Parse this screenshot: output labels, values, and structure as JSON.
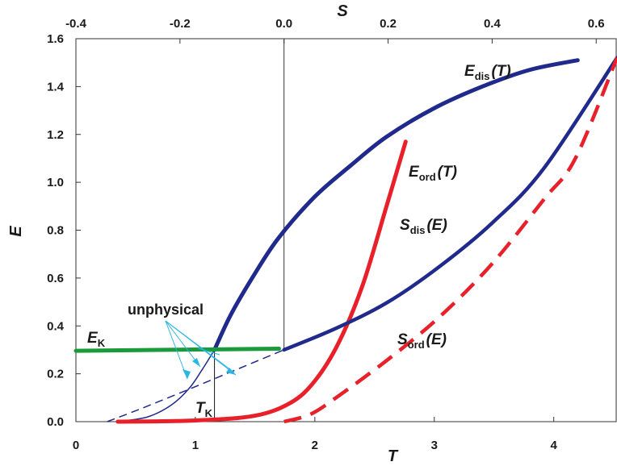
{
  "chart_data": {
    "type": "line",
    "xlabel": "T",
    "ylabel": "E",
    "x2label": "S",
    "xlim": [
      0,
      4.5
    ],
    "ylim": [
      0,
      1.6
    ],
    "x2lim": [
      -0.4,
      0.64
    ],
    "xticks": [
      "0",
      "1",
      "2",
      "3",
      "4"
    ],
    "yticks": [
      "0.0",
      "0.2",
      "0.4",
      "0.6",
      "0.8",
      "1.0",
      "1.2",
      "1.4",
      "1.6"
    ],
    "x2ticks": [
      "-0.4",
      "-0.2",
      "0.0",
      "0.2",
      "0.4",
      "0.6"
    ],
    "grid": false,
    "colors": {
      "dis": "#1f2a8c",
      "ord": "#e8202a",
      "ek": "#1a9a3a",
      "unphysical": "#29b6e0",
      "axis": "#333333"
    },
    "series": [
      {
        "id": "E_dis_T",
        "axis": "T",
        "x": [
          1.16,
          1.3,
          1.5,
          1.7,
          2.0,
          2.3,
          2.6,
          3.0,
          3.4,
          3.8,
          4.2
        ],
        "y": [
          0.3,
          0.45,
          0.62,
          0.77,
          0.94,
          1.07,
          1.19,
          1.31,
          1.4,
          1.47,
          1.51
        ]
      },
      {
        "id": "E_dis_T_unphysical",
        "axis": "T",
        "x": [
          0.35,
          0.6,
          0.8,
          0.95,
          1.06,
          1.16
        ],
        "y": [
          0.0,
          0.02,
          0.07,
          0.14,
          0.22,
          0.3
        ]
      },
      {
        "id": "E_ord_T",
        "axis": "T",
        "x": [
          0.35,
          1.0,
          1.5,
          1.8,
          2.0,
          2.2,
          2.4,
          2.6,
          2.76
        ],
        "y": [
          0.0,
          0.005,
          0.025,
          0.08,
          0.17,
          0.33,
          0.57,
          0.9,
          1.17
        ]
      },
      {
        "id": "S_dis_E",
        "axis": "S",
        "x": [
          0.0,
          0.1,
          0.2,
          0.3,
          0.4,
          0.5,
          0.64
        ],
        "y": [
          0.3,
          0.39,
          0.5,
          0.65,
          0.83,
          1.06,
          1.52
        ]
      },
      {
        "id": "S_dis_E_unphysical",
        "axis": "S",
        "x": [
          -0.34,
          -0.28,
          -0.2,
          -0.1,
          0.0
        ],
        "y": [
          0.0,
          0.05,
          0.12,
          0.21,
          0.3
        ]
      },
      {
        "id": "S_ord_E",
        "axis": "S",
        "x": [
          0.0,
          0.05,
          0.1,
          0.2,
          0.3,
          0.4,
          0.5,
          0.56,
          0.64
        ],
        "y": [
          0.0,
          0.03,
          0.1,
          0.26,
          0.44,
          0.66,
          0.93,
          1.1,
          1.52
        ]
      },
      {
        "id": "E_K",
        "axis": "T",
        "x": [
          0.0,
          1.7
        ],
        "y": [
          0.296,
          0.305
        ]
      }
    ],
    "markers": {
      "T_K": 1.16,
      "E_K": 0.3,
      "S_zero": 0.0
    },
    "annotations": {
      "E_dis": {
        "main": "E",
        "sub": "dis",
        "tail": "(T)"
      },
      "E_ord": {
        "main": "E",
        "sub": "ord",
        "tail": "(T)"
      },
      "S_dis": {
        "main": "S",
        "sub": "dis",
        "tail": "(E)"
      },
      "S_ord": {
        "main": "S",
        "sub": "ord",
        "tail": "(E)"
      },
      "E_K": {
        "main": "E",
        "sub": "K"
      },
      "T_K": {
        "main": "T",
        "sub": "K"
      },
      "unphysical": "unphysical"
    }
  }
}
